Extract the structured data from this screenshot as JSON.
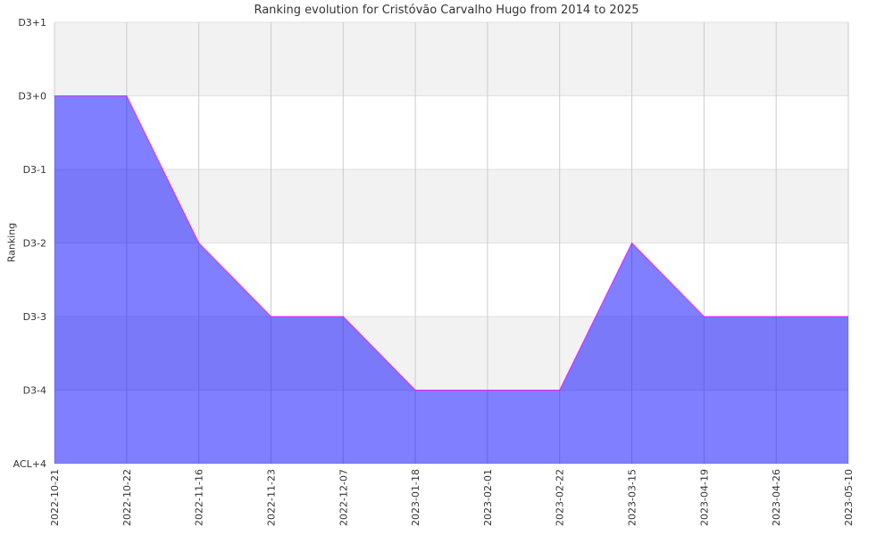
{
  "chart_data": {
    "type": "area",
    "title": "Ranking evolution for Cristóvão Carvalho Hugo from 2014 to 2025",
    "xlabel": "",
    "ylabel": "Ranking",
    "x": [
      "2022-10-21",
      "2022-10-22",
      "2022-11-16",
      "2022-11-23",
      "2022-12-07",
      "2023-01-18",
      "2023-02-01",
      "2023-02-22",
      "2023-03-15",
      "2023-04-19",
      "2023-04-26",
      "2023-05-10"
    ],
    "y_ticks": [
      "ACL+4",
      "D3-4",
      "D3-3",
      "D3-2",
      "D3-1",
      "D3+0",
      "D3+1"
    ],
    "series": [
      {
        "values": [
          "D3+0",
          "D3+0",
          "D3-2",
          "D3-3",
          "D3-3",
          "D3-4",
          "D3-4",
          "D3-4",
          "D3-2",
          "D3-3",
          "D3-3",
          "D3-3"
        ]
      }
    ],
    "grid": true,
    "colors": {
      "fill": "#8080ff",
      "line": "#ff00ff",
      "band": "#f2f2f2",
      "grid": "#cccccc"
    }
  }
}
